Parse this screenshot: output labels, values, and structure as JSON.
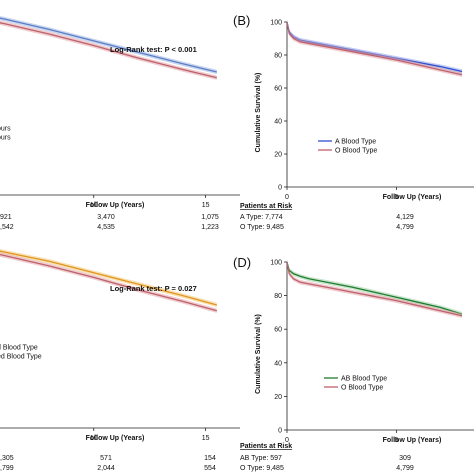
{
  "chart_data": [
    {
      "id": "A",
      "type": "line",
      "panel_label": "",
      "xlabel": "Follow Up (Years)",
      "ylabel": "",
      "xlim": [
        0,
        16
      ],
      "ylim": [
        0,
        100
      ],
      "xticks": [
        "5",
        "10",
        "15"
      ],
      "yticks": [],
      "annotation": "Log-Rank test: P < 0.001",
      "legend": [
        "ours",
        "ours"
      ],
      "risk_header": "",
      "risk_rows": [
        {
          "label": "",
          "values": [
            "921",
            "3,470",
            "1,075"
          ]
        },
        {
          "label": "",
          "values": [
            ",542",
            "4,535",
            "1,223"
          ]
        }
      ],
      "series": [
        {
          "color": "#5a7fc8",
          "band": "#9eb4e0",
          "x": [
            0,
            2,
            4,
            6,
            8,
            10,
            12,
            14,
            15.5
          ],
          "y": [
            86,
            83.5,
            80.5,
            76.5,
            72,
            67,
            62,
            57,
            53.5
          ]
        },
        {
          "color": "#c0606a",
          "band": "#e0a4aa",
          "x": [
            0,
            2,
            4,
            6,
            8,
            10,
            12,
            14,
            15.5
          ],
          "y": [
            84.5,
            82,
            78.5,
            74.5,
            70,
            65,
            59.5,
            54.5,
            51
          ]
        }
      ]
    },
    {
      "id": "B",
      "type": "line",
      "panel_label": "(B)",
      "xlabel": "Follow Up (Years)",
      "ylabel": "Cumulative Survival (%)",
      "xlim": [
        0,
        8
      ],
      "ylim": [
        0,
        100
      ],
      "xticks": [
        "0",
        "5"
      ],
      "yticks": [
        "0",
        "20",
        "40",
        "60",
        "80",
        "100"
      ],
      "annotation": "",
      "legend": [
        "A Blood Type",
        "O Blood Type"
      ],
      "risk_header": "Patients at Risk",
      "risk_rows": [
        {
          "label": "A Type: 7,774",
          "values": [
            "4,129"
          ]
        },
        {
          "label": "O Type: 9,485",
          "values": [
            "4,799"
          ]
        }
      ],
      "series": [
        {
          "color": "#2f4fd0",
          "band": "#8fa2ea",
          "x": [
            0,
            0.1,
            0.3,
            0.6,
            1,
            2,
            3,
            4,
            5,
            6,
            7,
            8
          ],
          "y": [
            100,
            94,
            91,
            89,
            88,
            85.5,
            83,
            80.5,
            78,
            75.5,
            73,
            70
          ]
        },
        {
          "color": "#c0606a",
          "band": "#e0a4aa",
          "x": [
            0,
            0.1,
            0.3,
            0.6,
            1,
            2,
            3,
            4,
            5,
            6,
            7,
            8
          ],
          "y": [
            100,
            93,
            90,
            88,
            87,
            84.5,
            82,
            79.5,
            77,
            74,
            71,
            68
          ]
        }
      ]
    },
    {
      "id": "C",
      "type": "line",
      "panel_label": "",
      "xlabel": "Follow Up (Years)",
      "ylabel": "",
      "xlim": [
        0,
        16
      ],
      "ylim": [
        0,
        100
      ],
      "xticks": [
        "5",
        "10",
        "15"
      ],
      "yticks": [],
      "annotation": "Log-Rank test: P = 0.027",
      "legend": [
        "d Blood Type",
        "ed Blood Type"
      ],
      "risk_header": "",
      "risk_rows": [
        {
          "label": "",
          "values": [
            ",305",
            "571",
            "154"
          ]
        },
        {
          "label": "",
          "values": [
            ",799",
            "2,044",
            "554"
          ]
        }
      ],
      "series": [
        {
          "color": "#e0961e",
          "band": "#f3c97a",
          "x": [
            0,
            2,
            4,
            6,
            8,
            10,
            12,
            14,
            15.5
          ],
          "y": [
            86,
            84,
            80.5,
            76.5,
            72.5,
            67.5,
            62.5,
            57.5,
            53.5
          ]
        },
        {
          "color": "#c0606a",
          "band": "#e0a4aa",
          "x": [
            0,
            2,
            4,
            6,
            8,
            10,
            12,
            14,
            15.5
          ],
          "y": [
            85,
            82.5,
            79,
            75,
            70.5,
            65.5,
            60,
            55,
            51
          ]
        }
      ]
    },
    {
      "id": "D",
      "type": "line",
      "panel_label": "(D)",
      "xlabel": "Follow Up (Years)",
      "ylabel": "Cumulative Survival (%)",
      "xlim": [
        0,
        8
      ],
      "ylim": [
        0,
        100
      ],
      "xticks": [
        "0",
        "5"
      ],
      "yticks": [
        "0",
        "20",
        "40",
        "60",
        "80",
        "100"
      ],
      "annotation": "",
      "legend": [
        "AB Blood Type",
        "O Blood Type"
      ],
      "risk_header": "Patients at Risk",
      "risk_rows": [
        {
          "label": "AB Type: 597",
          "values": [
            "309"
          ]
        },
        {
          "label": "O Type: 9,485",
          "values": [
            "4,799"
          ]
        }
      ],
      "series": [
        {
          "color": "#1e7d2e",
          "band": "#9fd0a6",
          "x": [
            0,
            0.1,
            0.3,
            0.6,
            1,
            2,
            3,
            4,
            5,
            6,
            7,
            8
          ],
          "y": [
            100,
            95,
            93,
            91.5,
            90,
            87.5,
            85,
            82,
            79,
            76,
            73,
            69
          ]
        },
        {
          "color": "#c0606a",
          "band": "#e0a4aa",
          "x": [
            0,
            0.1,
            0.3,
            0.6,
            1,
            2,
            3,
            4,
            5,
            6,
            7,
            8
          ],
          "y": [
            100,
            93,
            90,
            88,
            87,
            84.5,
            82,
            79.5,
            77,
            74,
            71,
            68
          ]
        }
      ]
    }
  ]
}
